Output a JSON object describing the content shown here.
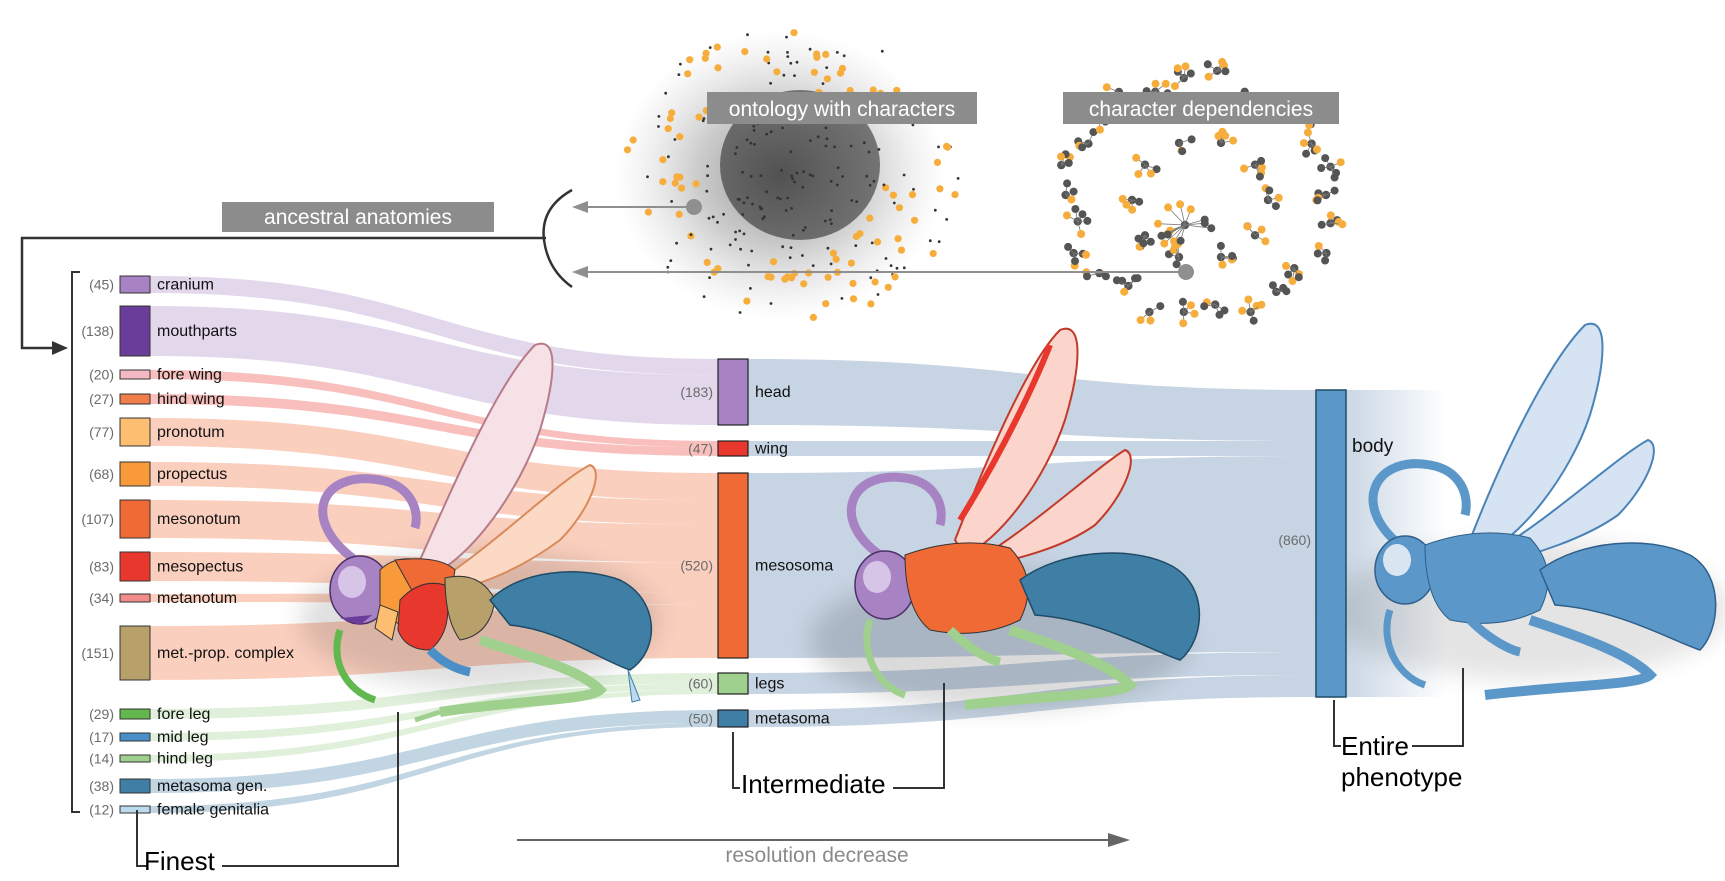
{
  "pills": {
    "ancestral": "ancestral anatomies",
    "ontology": "ontology with characters",
    "dependencies": "character dependencies"
  },
  "levels": {
    "finest": "Finest",
    "intermediate": "Intermediate",
    "entire_line1": "Entire",
    "entire_line2": "phenotype"
  },
  "resolution_label": "resolution decrease",
  "finest": [
    {
      "count": "(45)",
      "label": "cranium",
      "color": "#a883c4",
      "group": "head"
    },
    {
      "count": "(138)",
      "label": "mouthparts",
      "color": "#6a3d9a",
      "group": "head"
    },
    {
      "count": "(20)",
      "label": "fore wing",
      "color": "#f2b9c2",
      "group": "wing"
    },
    {
      "count": "(27)",
      "label": "hind wing",
      "color": "#f07e4a",
      "group": "wing"
    },
    {
      "count": "(77)",
      "label": "pronotum",
      "color": "#fdbe72",
      "group": "mesosoma"
    },
    {
      "count": "(68)",
      "label": "propectus",
      "color": "#f89a3a",
      "group": "mesosoma"
    },
    {
      "count": "(107)",
      "label": "mesonotum",
      "color": "#f06a36",
      "group": "mesosoma"
    },
    {
      "count": "(83)",
      "label": "mesopectus",
      "color": "#e8382e",
      "group": "mesosoma"
    },
    {
      "count": "(34)",
      "label": "metanotum",
      "color": "#f28b8b",
      "group": "mesosoma"
    },
    {
      "count": "(151)",
      "label": "met.-prop. complex",
      "color": "#b7a06a",
      "group": "mesosoma"
    },
    {
      "count": "(29)",
      "label": "fore leg",
      "color": "#62b84f",
      "group": "legs"
    },
    {
      "count": "(17)",
      "label": "mid leg",
      "color": "#4a8fc8",
      "group": "legs"
    },
    {
      "count": "(14)",
      "label": "hind leg",
      "color": "#9fd08e",
      "group": "legs"
    },
    {
      "count": "(38)",
      "label": "metasoma gen.",
      "color": "#3f7ea5",
      "group": "metasoma"
    },
    {
      "count": "(12)",
      "label": "female genitalia",
      "color": "#bcd9ee",
      "group": "metasoma"
    }
  ],
  "intermediate": [
    {
      "count": "(183)",
      "label": "head",
      "color": "#a883c4"
    },
    {
      "count": "(47)",
      "label": "wing",
      "color": "#e8382e"
    },
    {
      "count": "(520)",
      "label": "mesosoma",
      "color": "#f06a36"
    },
    {
      "count": "(60)",
      "label": "legs",
      "color": "#9fd08e"
    },
    {
      "count": "(50)",
      "label": "metasoma",
      "color": "#3f7ea5"
    }
  ],
  "entire": {
    "count": "(860)",
    "label": "body",
    "color": "#5b97c8"
  },
  "colors": {
    "pill": "#8c8c8c",
    "flow_to_body": "#c3d2e1",
    "arrow": "#8f8f8f",
    "network_gray": "#555555",
    "network_orange": "#f6ad3c"
  }
}
